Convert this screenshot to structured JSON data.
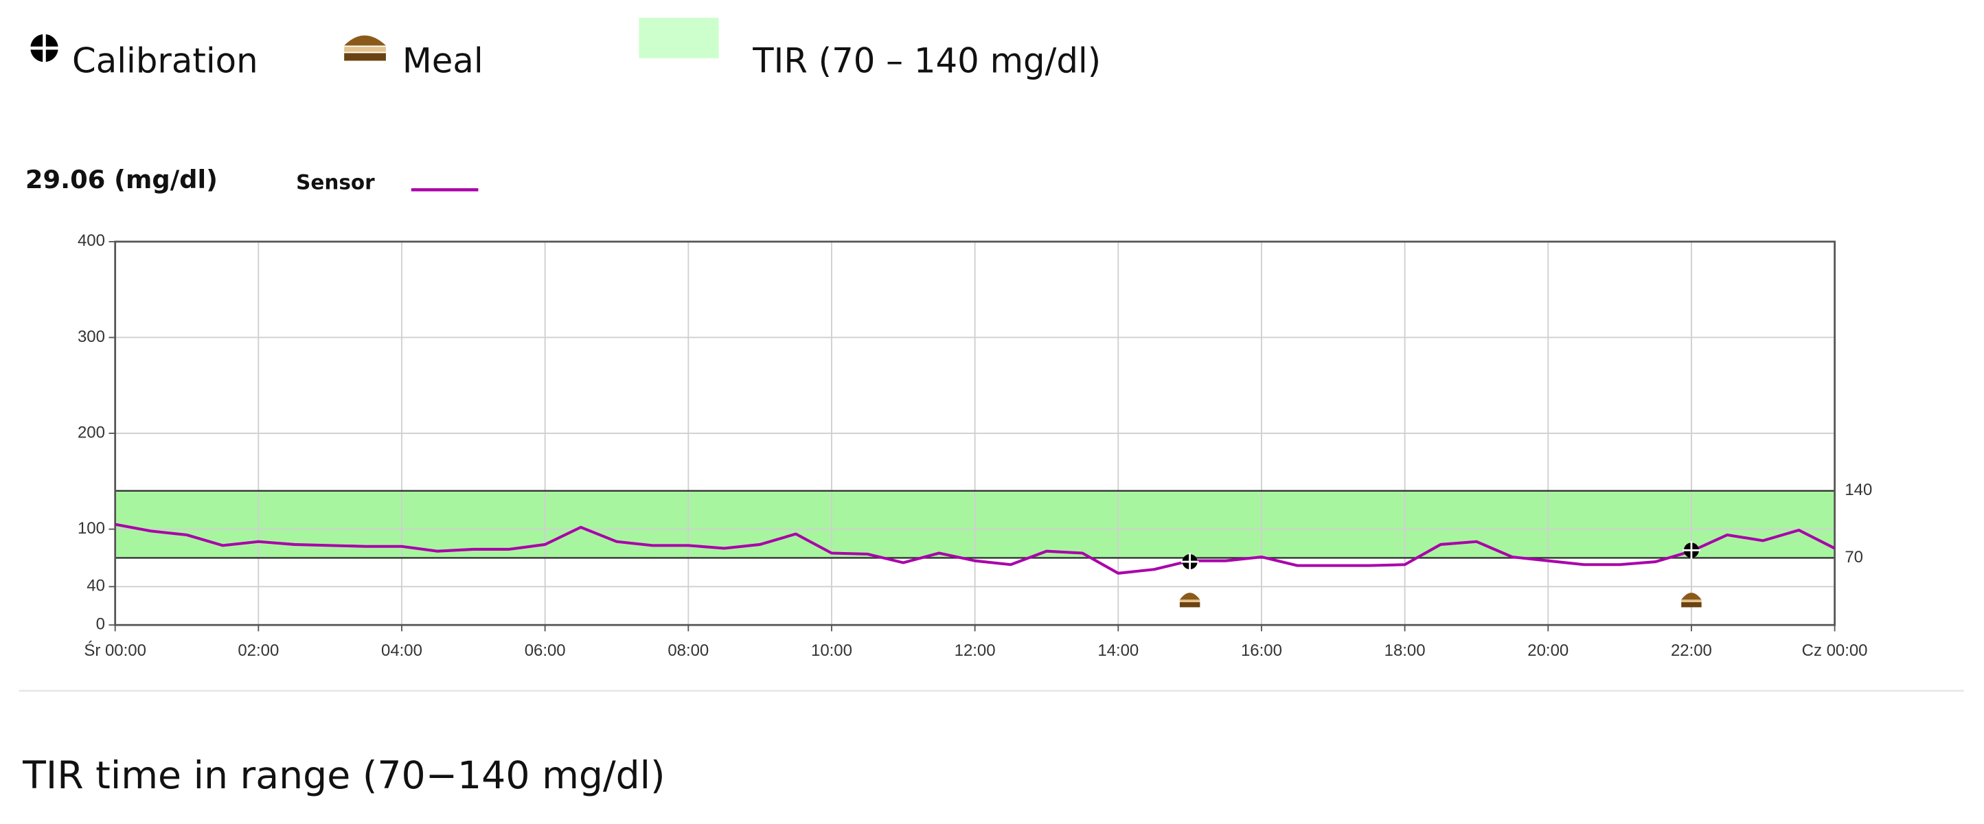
{
  "chart_data": {
    "type": "line",
    "legend": {
      "calibration": "Calibration",
      "meal": "Meal",
      "tir": "TIR (70 – 140 mg/dl)"
    },
    "reading": "29.06 (mg/dl)",
    "x": [
      0,
      0.5,
      1,
      1.5,
      2,
      2.5,
      3,
      3.5,
      4,
      4.5,
      5,
      5.5,
      6,
      6.5,
      7,
      7.5,
      8,
      8.5,
      9,
      9.5,
      10,
      10.5,
      11,
      11.5,
      12,
      12.5,
      13,
      13.5,
      14,
      14.5,
      15,
      15.5,
      16,
      16.5,
      17,
      17.5,
      18,
      18.5,
      19,
      19.5,
      20,
      20.5,
      21,
      21.5,
      22,
      22.5,
      23,
      23.5,
      24
    ],
    "series": [
      {
        "name": "Sensor",
        "color": "#aa00aa",
        "values": [
          105,
          98,
          94,
          83,
          87,
          84,
          83,
          82,
          82,
          77,
          79,
          79,
          84,
          102,
          87,
          83,
          83,
          80,
          84,
          95,
          75,
          74,
          65,
          75,
          67,
          63,
          77,
          75,
          54,
          58,
          67,
          67,
          71,
          62,
          62,
          62,
          63,
          84,
          87,
          71,
          67,
          63,
          63,
          66,
          77,
          94,
          88,
          99,
          80
        ]
      }
    ],
    "calibrations": {
      "x": [
        15,
        22
      ],
      "values": [
        66,
        78
      ]
    },
    "meals": [
      15,
      22
    ],
    "target_range": [
      70,
      140
    ],
    "band_color": "#a8f5a0",
    "xlim": [
      0,
      24
    ],
    "xticks": [
      {
        "value": 0,
        "label": "Śr 00:00"
      },
      {
        "value": 2,
        "label": "02:00"
      },
      {
        "value": 4,
        "label": "04:00"
      },
      {
        "value": 6,
        "label": "06:00"
      },
      {
        "value": 8,
        "label": "08:00"
      },
      {
        "value": 10,
        "label": "10:00"
      },
      {
        "value": 12,
        "label": "12:00"
      },
      {
        "value": 14,
        "label": "14:00"
      },
      {
        "value": 16,
        "label": "16:00"
      },
      {
        "value": 18,
        "label": "18:00"
      },
      {
        "value": 20,
        "label": "20:00"
      },
      {
        "value": 22,
        "label": "22:00"
      },
      {
        "value": 24,
        "label": "Cz 00:00"
      }
    ],
    "ylim": [
      0,
      400
    ],
    "yticks": [
      0,
      40,
      100,
      200,
      300,
      400
    ],
    "grid": true
  },
  "footer": "TIR time in range (70−140 mg/dl)"
}
